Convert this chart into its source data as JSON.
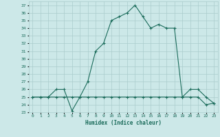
{
  "xlabel": "Humidex (Indice chaleur)",
  "bg_color": "#cce8e8",
  "grid_color": "#aacccc",
  "line_color": "#1a6b5a",
  "xlim": [
    -0.5,
    23.5
  ],
  "ylim": [
    23,
    37.5
  ],
  "yticks": [
    23,
    24,
    25,
    26,
    27,
    28,
    29,
    30,
    31,
    32,
    33,
    34,
    35,
    36,
    37
  ],
  "xticks": [
    0,
    1,
    2,
    3,
    4,
    5,
    6,
    7,
    8,
    9,
    10,
    11,
    12,
    13,
    14,
    15,
    16,
    17,
    18,
    19,
    20,
    21,
    22,
    23
  ],
  "humidex": [
    25,
    25,
    25,
    26,
    26,
    23.2,
    25,
    27,
    31,
    32,
    35,
    35.5,
    36,
    37,
    35.5,
    34,
    34.5,
    34,
    34,
    25,
    26,
    26,
    25,
    24.2
  ],
  "temp": [
    25,
    25,
    25,
    25,
    25,
    25,
    25,
    25,
    25,
    25,
    25,
    25,
    25,
    25,
    25,
    25,
    25,
    25,
    25,
    25,
    25,
    25,
    24,
    24.2
  ]
}
